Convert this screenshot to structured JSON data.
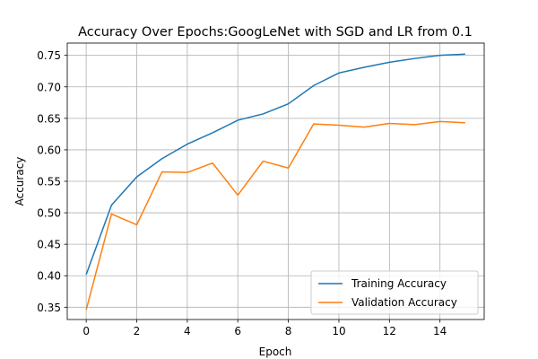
{
  "chart_data": {
    "type": "line",
    "title": "Accuracy Over Epochs:GoogLeNet with SGD and LR from 0.1",
    "xlabel": "Epoch",
    "ylabel": "Accuracy",
    "x": [
      0,
      1,
      2,
      3,
      4,
      5,
      6,
      7,
      8,
      9,
      10,
      11,
      12,
      13,
      14,
      15
    ],
    "xlim": [
      -0.75,
      15.75
    ],
    "ylim": [
      0.3305,
      0.7695
    ],
    "xticks": [
      0,
      2,
      4,
      6,
      8,
      10,
      12,
      14
    ],
    "yticks": [
      0.35,
      0.4,
      0.45,
      0.5,
      0.55,
      0.6,
      0.65,
      0.7,
      0.75
    ],
    "grid": true,
    "legend_position": "bottom-right",
    "series": [
      {
        "name": "Training Accuracy",
        "color": "#1f77b4",
        "values": [
          0.402,
          0.512,
          0.557,
          0.586,
          0.609,
          0.627,
          0.647,
          0.657,
          0.673,
          0.702,
          0.722,
          0.731,
          0.739,
          0.745,
          0.75,
          0.752
        ]
      },
      {
        "name": "Validation Accuracy",
        "color": "#ff7f0e",
        "values": [
          0.346,
          0.498,
          0.481,
          0.565,
          0.564,
          0.579,
          0.528,
          0.582,
          0.571,
          0.641,
          0.639,
          0.636,
          0.642,
          0.64,
          0.645,
          0.643
        ]
      }
    ]
  }
}
